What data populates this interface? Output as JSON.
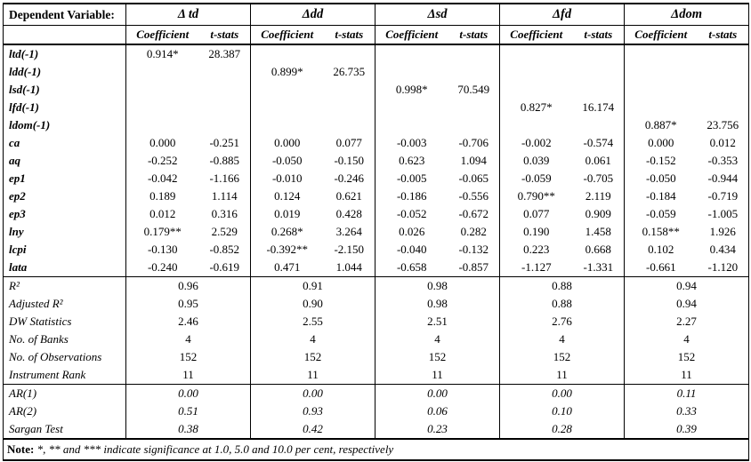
{
  "note": {
    "label": "Note:",
    "text": " *, ** and *** indicate significance at 1.0, 5.0 and 10.0 per cent, respectively"
  },
  "table": {
    "dependent_variable_label": "Dependent Variable:",
    "groups": [
      "Δ td",
      "Δdd",
      "Δsd",
      "Δfd",
      "Δdom"
    ],
    "subheaders": [
      "Coefficient",
      "t-stats"
    ],
    "coefficient_rows": [
      {
        "label": "ltd(-1)",
        "values": [
          "0.914*",
          "28.387",
          "",
          "",
          "",
          "",
          "",
          "",
          "",
          ""
        ]
      },
      {
        "label": "ldd(-1)",
        "values": [
          "",
          "",
          "0.899*",
          "26.735",
          "",
          "",
          "",
          "",
          "",
          ""
        ]
      },
      {
        "label": "lsd(-1)",
        "values": [
          "",
          "",
          "",
          "",
          "0.998*",
          "70.549",
          "",
          "",
          "",
          ""
        ]
      },
      {
        "label": "lfd(-1)",
        "values": [
          "",
          "",
          "",
          "",
          "",
          "",
          "0.827*",
          "16.174",
          "",
          ""
        ]
      },
      {
        "label": "ldom(-1)",
        "values": [
          "",
          "",
          "",
          "",
          "",
          "",
          "",
          "",
          "0.887*",
          "23.756"
        ]
      },
      {
        "label": "ca",
        "values": [
          "0.000",
          "-0.251",
          "0.000",
          "0.077",
          "-0.003",
          "-0.706",
          "-0.002",
          "-0.574",
          "0.000",
          "0.012"
        ]
      },
      {
        "label": "aq",
        "values": [
          "-0.252",
          "-0.885",
          "-0.050",
          "-0.150",
          "0.623",
          "1.094",
          "0.039",
          "0.061",
          "-0.152",
          "-0.353"
        ]
      },
      {
        "label": "ep1",
        "values": [
          "-0.042",
          "-1.166",
          "-0.010",
          "-0.246",
          "-0.005",
          "-0.065",
          "-0.059",
          "-0.705",
          "-0.050",
          "-0.944"
        ]
      },
      {
        "label": "ep2",
        "values": [
          "0.189",
          "1.114",
          "0.124",
          "0.621",
          "-0.186",
          "-0.556",
          "0.790**",
          "2.119",
          "-0.184",
          "-0.719"
        ]
      },
      {
        "label": "ep3",
        "values": [
          "0.012",
          "0.316",
          "0.019",
          "0.428",
          "-0.052",
          "-0.672",
          "0.077",
          "0.909",
          "-0.059",
          "-1.005"
        ]
      },
      {
        "label": "lny",
        "values": [
          "0.179**",
          "2.529",
          "0.268*",
          "3.264",
          "0.026",
          "0.282",
          "0.190",
          "1.458",
          "0.158**",
          "1.926"
        ]
      },
      {
        "label": "lcpi",
        "values": [
          "-0.130",
          "-0.852",
          "-0.392**",
          "-2.150",
          "-0.040",
          "-0.132",
          "0.223",
          "0.668",
          "0.102",
          "0.434"
        ]
      },
      {
        "label": "lata",
        "values": [
          "-0.240",
          "-0.619",
          "0.471",
          "1.044",
          "-0.658",
          "-0.857",
          "-1.127",
          "-1.331",
          "-0.661",
          "-1.120"
        ]
      }
    ],
    "summary_rows": [
      {
        "label": "R²",
        "values": [
          "0.96",
          "0.91",
          "0.98",
          "0.88",
          "0.94"
        ]
      },
      {
        "label": "Adjusted R²",
        "values": [
          "0.95",
          "0.90",
          "0.98",
          "0.88",
          "0.94"
        ]
      },
      {
        "label": "DW Statistics",
        "values": [
          "2.46",
          "2.55",
          "2.51",
          "2.76",
          "2.27"
        ]
      },
      {
        "label": "No. of Banks",
        "values": [
          "4",
          "4",
          "4",
          "4",
          "4"
        ]
      },
      {
        "label": "No. of Observations",
        "values": [
          "152",
          "152",
          "152",
          "152",
          "152"
        ]
      },
      {
        "label": "Instrument Rank",
        "values": [
          "11",
          "11",
          "11",
          "11",
          "11"
        ]
      }
    ],
    "test_rows": [
      {
        "label": "AR(1)",
        "values": [
          "0.00",
          "0.00",
          "0.00",
          "0.00",
          "0.11"
        ]
      },
      {
        "label": "AR(2)",
        "values": [
          "0.51",
          "0.93",
          "0.06",
          "0.10",
          "0.33"
        ]
      },
      {
        "label": "Sargan Test",
        "values": [
          "0.38",
          "0.42",
          "0.23",
          "0.28",
          "0.39"
        ]
      }
    ]
  }
}
